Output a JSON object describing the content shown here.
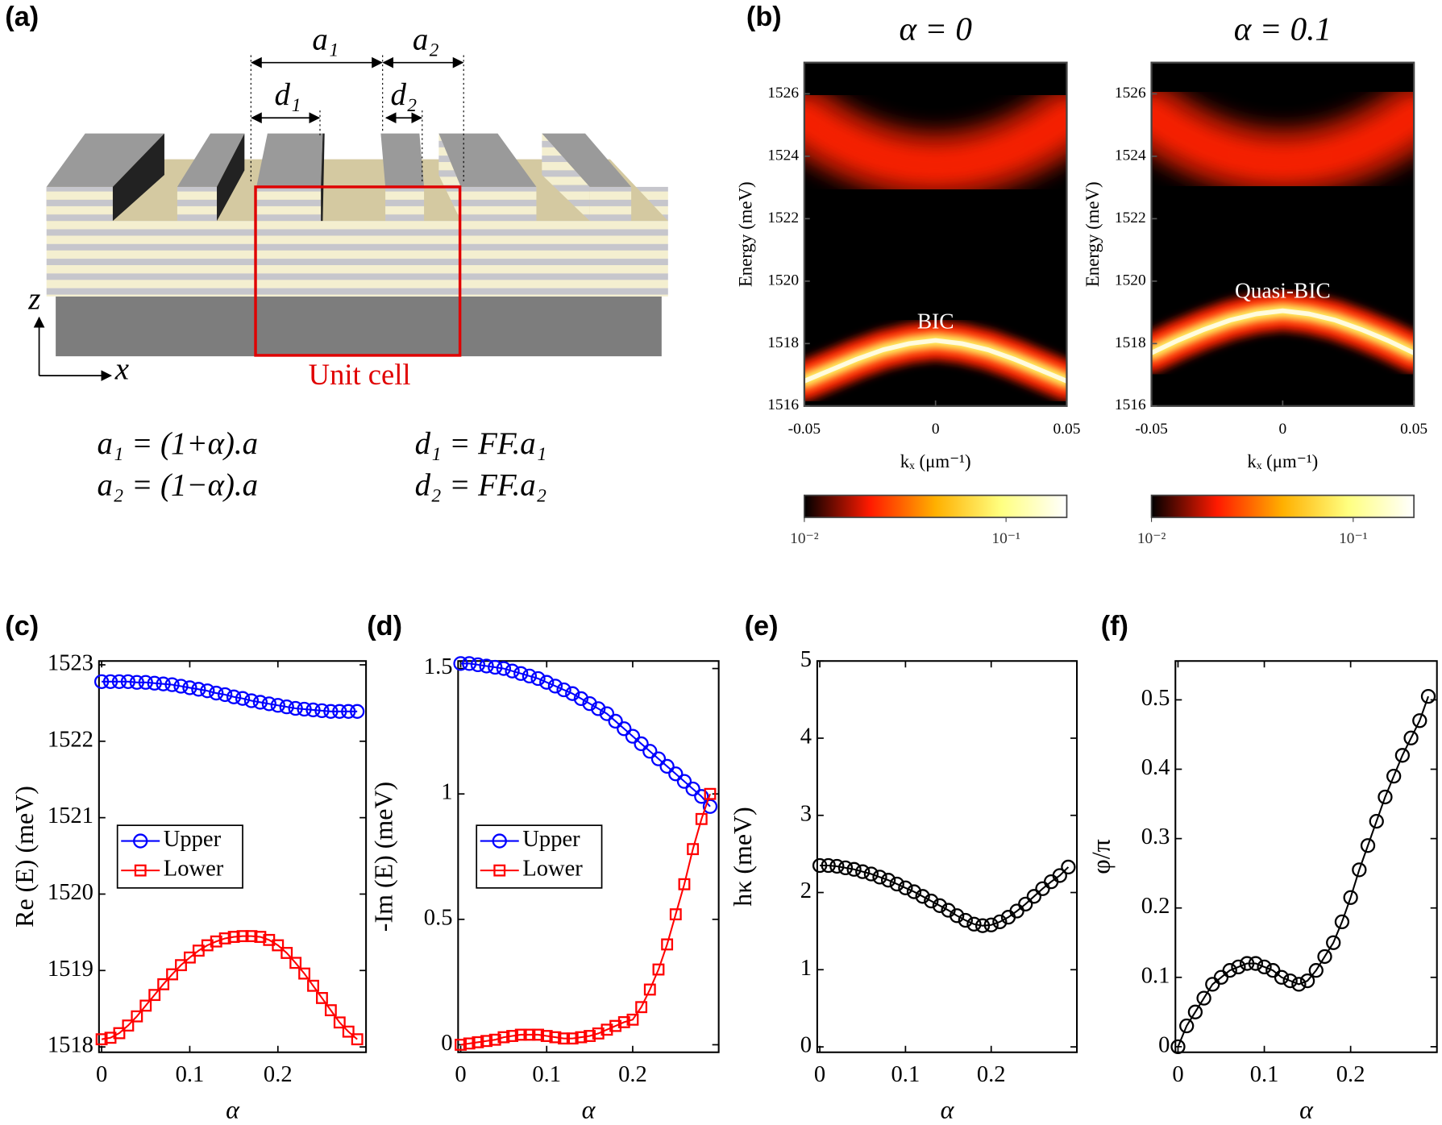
{
  "diagram": {
    "label": "(a)",
    "dims": [
      "a₁",
      "a₂",
      "d₁",
      "d₂"
    ],
    "unit_cell": "Unit cell",
    "axes": [
      "z",
      "x"
    ],
    "equations": [
      "a₁ = (1+α).a",
      "a₂ = (1−α).a",
      "d₁ = FF.a₁",
      "d₂ = FF.a₂"
    ]
  },
  "chart_data": [
    {
      "type": "heatmap",
      "panel_label": "(b)",
      "title": "α = 0",
      "x_label": "kₓ (μm⁻¹)",
      "y_label": "Energy (meV)",
      "x": [
        -0.05,
        -0.04,
        -0.03,
        -0.02,
        -0.01,
        0,
        0.01,
        0.02,
        0.03,
        0.04,
        0.05
      ],
      "xlim": [
        -0.05,
        0.05
      ],
      "xticks": [
        -0.05,
        0,
        0.05
      ],
      "ylim": [
        1516,
        1527
      ],
      "yticks": [
        1516,
        1518,
        1520,
        1522,
        1524,
        1526
      ],
      "series": [
        {
          "color": "#ff2200",
          "values": [
            1525.2,
            1524.66,
            1524.24,
            1523.94,
            1523.76,
            1523.7,
            1523.76,
            1523.94,
            1524.24,
            1524.66,
            1525.2
          ]
        },
        {
          "color": "#ffff66",
          "values": [
            1516.8,
            1517.15,
            1517.5,
            1517.8,
            1518.0,
            1518.1,
            1518.0,
            1517.8,
            1517.5,
            1517.15,
            1516.8
          ]
        }
      ],
      "annotation": {
        "text": "BIC",
        "x": 0,
        "y": 1518.65
      },
      "colorbar": {
        "colormap": [
          "#000000",
          "#ff1a00",
          "#ffb000",
          "#ffff80",
          "#ffffff"
        ],
        "log": true,
        "lim": [
          0.01,
          0.2
        ],
        "ticks": [
          {
            "value": 0.01,
            "label": "10⁻²"
          },
          {
            "value": 0.1,
            "label": "10⁻¹"
          }
        ]
      }
    },
    {
      "type": "heatmap",
      "title": "α = 0.1",
      "x_label": "kₓ (μm⁻¹)",
      "y_label": "Energy (meV)",
      "x": [
        -0.05,
        -0.04,
        -0.03,
        -0.02,
        -0.01,
        0,
        0.01,
        0.02,
        0.03,
        0.04,
        0.05
      ],
      "xlim": [
        -0.05,
        0.05
      ],
      "xticks": [
        -0.05,
        0,
        0.05
      ],
      "ylim": [
        1516,
        1527
      ],
      "yticks": [
        1516,
        1518,
        1520,
        1522,
        1524,
        1526
      ],
      "series": [
        {
          "color": "#ff2200",
          "values": [
            1525.3,
            1524.76,
            1524.34,
            1524.04,
            1523.86,
            1523.8,
            1523.86,
            1524.04,
            1524.34,
            1524.76,
            1525.3
          ]
        },
        {
          "color": "#ffff66",
          "values": [
            1517.7,
            1518.1,
            1518.45,
            1518.75,
            1518.95,
            1519.05,
            1518.95,
            1518.75,
            1518.45,
            1518.1,
            1517.7
          ]
        }
      ],
      "annotation": {
        "text": "Quasi-BIC",
        "x": 0,
        "y": 1519.63
      },
      "colorbar": {
        "colormap": [
          "#000000",
          "#ff1a00",
          "#ffb000",
          "#ffff80",
          "#ffffff"
        ],
        "log": true,
        "lim": [
          0.01,
          0.2
        ],
        "ticks": [
          {
            "value": 0.01,
            "label": "10⁻²"
          },
          {
            "value": 0.1,
            "label": "10⁻¹"
          }
        ]
      }
    },
    {
      "type": "line",
      "panel_label": "(c)",
      "x_label": "α",
      "y_label": "Re (E) (meV)",
      "x": [
        0,
        0.01,
        0.02,
        0.03,
        0.04,
        0.05,
        0.06,
        0.07,
        0.08,
        0.09,
        0.1,
        0.11,
        0.12,
        0.13,
        0.14,
        0.15,
        0.16,
        0.17,
        0.18,
        0.19,
        0.2,
        0.21,
        0.22,
        0.23,
        0.24,
        0.25,
        0.26,
        0.27,
        0.28,
        0.29
      ],
      "xlim": [
        -0.003,
        0.3
      ],
      "xticks": [
        0,
        0.1,
        0.2
      ],
      "ylim": [
        1517.93,
        1523.05
      ],
      "yticks": [
        1518,
        1519,
        1520,
        1521,
        1522,
        1523
      ],
      "legend": "center-left",
      "series": [
        {
          "name": "Upper",
          "color": "#0000ff",
          "marker": "circle",
          "values": [
            1522.78,
            1522.78,
            1522.78,
            1522.78,
            1522.77,
            1522.77,
            1522.76,
            1522.75,
            1522.74,
            1522.72,
            1522.7,
            1522.68,
            1522.66,
            1522.63,
            1522.61,
            1522.58,
            1522.56,
            1522.53,
            1522.51,
            1522.49,
            1522.47,
            1522.45,
            1522.43,
            1522.42,
            1522.41,
            1522.4,
            1522.39,
            1522.39,
            1522.39,
            1522.39
          ]
        },
        {
          "name": "Lower",
          "color": "#ff0000",
          "marker": "square",
          "values": [
            1518.1,
            1518.12,
            1518.18,
            1518.28,
            1518.4,
            1518.54,
            1518.68,
            1518.82,
            1518.95,
            1519.07,
            1519.17,
            1519.26,
            1519.33,
            1519.38,
            1519.42,
            1519.44,
            1519.45,
            1519.45,
            1519.44,
            1519.4,
            1519.33,
            1519.23,
            1519.1,
            1518.96,
            1518.8,
            1518.64,
            1518.48,
            1518.32,
            1518.2,
            1518.1
          ]
        }
      ]
    },
    {
      "type": "line",
      "panel_label": "(d)",
      "x_label": "α",
      "y_label": "-Im (E) (meV)",
      "x": [
        0,
        0.01,
        0.02,
        0.03,
        0.04,
        0.05,
        0.06,
        0.07,
        0.08,
        0.09,
        0.1,
        0.11,
        0.12,
        0.13,
        0.14,
        0.15,
        0.16,
        0.17,
        0.18,
        0.19,
        0.2,
        0.21,
        0.22,
        0.23,
        0.24,
        0.25,
        0.26,
        0.27,
        0.28,
        0.29
      ],
      "xlim": [
        -0.003,
        0.3
      ],
      "xticks": [
        0,
        0.1,
        0.2
      ],
      "ylim": [
        -0.03,
        1.53
      ],
      "yticks": [
        0,
        0.5,
        1,
        1.5
      ],
      "legend": "center-left",
      "series": [
        {
          "name": "Upper",
          "color": "#0000ff",
          "marker": "circle",
          "values": [
            1.52,
            1.52,
            1.515,
            1.51,
            1.505,
            1.5,
            1.49,
            1.48,
            1.47,
            1.46,
            1.445,
            1.43,
            1.415,
            1.4,
            1.38,
            1.36,
            1.34,
            1.32,
            1.29,
            1.26,
            1.23,
            1.2,
            1.17,
            1.14,
            1.11,
            1.08,
            1.05,
            1.02,
            0.99,
            0.95
          ]
        },
        {
          "name": "Lower",
          "color": "#ff0000",
          "marker": "square",
          "values": [
            0,
            0.005,
            0.01,
            0.015,
            0.02,
            0.03,
            0.035,
            0.04,
            0.04,
            0.04,
            0.035,
            0.03,
            0.025,
            0.025,
            0.03,
            0.035,
            0.045,
            0.06,
            0.075,
            0.09,
            0.1,
            0.15,
            0.22,
            0.3,
            0.4,
            0.52,
            0.64,
            0.78,
            0.9,
            1.0
          ]
        }
      ]
    },
    {
      "type": "line",
      "panel_label": "(e)",
      "x_label": "α",
      "y_label": "hκ (meV)",
      "x": [
        0,
        0.01,
        0.02,
        0.03,
        0.04,
        0.05,
        0.06,
        0.07,
        0.08,
        0.09,
        0.1,
        0.11,
        0.12,
        0.13,
        0.14,
        0.15,
        0.16,
        0.17,
        0.18,
        0.19,
        0.2,
        0.21,
        0.22,
        0.23,
        0.24,
        0.25,
        0.26,
        0.27,
        0.28,
        0.29
      ],
      "xlim": [
        -0.003,
        0.3
      ],
      "xticks": [
        0,
        0.1,
        0.2
      ],
      "ylim": [
        -0.07,
        5
      ],
      "yticks": [
        0,
        1,
        2,
        3,
        4,
        5
      ],
      "series": [
        {
          "color": "#000000",
          "marker": "circle",
          "values": [
            2.35,
            2.35,
            2.34,
            2.32,
            2.3,
            2.27,
            2.24,
            2.2,
            2.16,
            2.11,
            2.06,
            2.01,
            1.95,
            1.89,
            1.83,
            1.77,
            1.7,
            1.64,
            1.59,
            1.57,
            1.58,
            1.62,
            1.68,
            1.76,
            1.85,
            1.95,
            2.05,
            2.14,
            2.22,
            2.33
          ]
        }
      ]
    },
    {
      "type": "line",
      "panel_label": "(f)",
      "x_label": "α",
      "y_label": "φ/π",
      "x": [
        0,
        0.01,
        0.02,
        0.03,
        0.04,
        0.05,
        0.06,
        0.07,
        0.08,
        0.09,
        0.1,
        0.11,
        0.12,
        0.13,
        0.14,
        0.15,
        0.16,
        0.17,
        0.18,
        0.19,
        0.2,
        0.21,
        0.22,
        0.23,
        0.24,
        0.25,
        0.26,
        0.27,
        0.28,
        0.29
      ],
      "xlim": [
        -0.003,
        0.3
      ],
      "xticks": [
        0,
        0.1,
        0.2
      ],
      "ylim": [
        -0.008,
        0.556
      ],
      "yticks": [
        0,
        0.1,
        0.2,
        0.3,
        0.4,
        0.5
      ],
      "series": [
        {
          "color": "#000000",
          "marker": "circle",
          "values": [
            0,
            0.03,
            0.05,
            0.07,
            0.09,
            0.1,
            0.11,
            0.115,
            0.12,
            0.12,
            0.115,
            0.11,
            0.1,
            0.095,
            0.09,
            0.095,
            0.11,
            0.13,
            0.15,
            0.18,
            0.215,
            0.255,
            0.29,
            0.325,
            0.36,
            0.39,
            0.42,
            0.445,
            0.47,
            0.505
          ]
        }
      ]
    }
  ]
}
